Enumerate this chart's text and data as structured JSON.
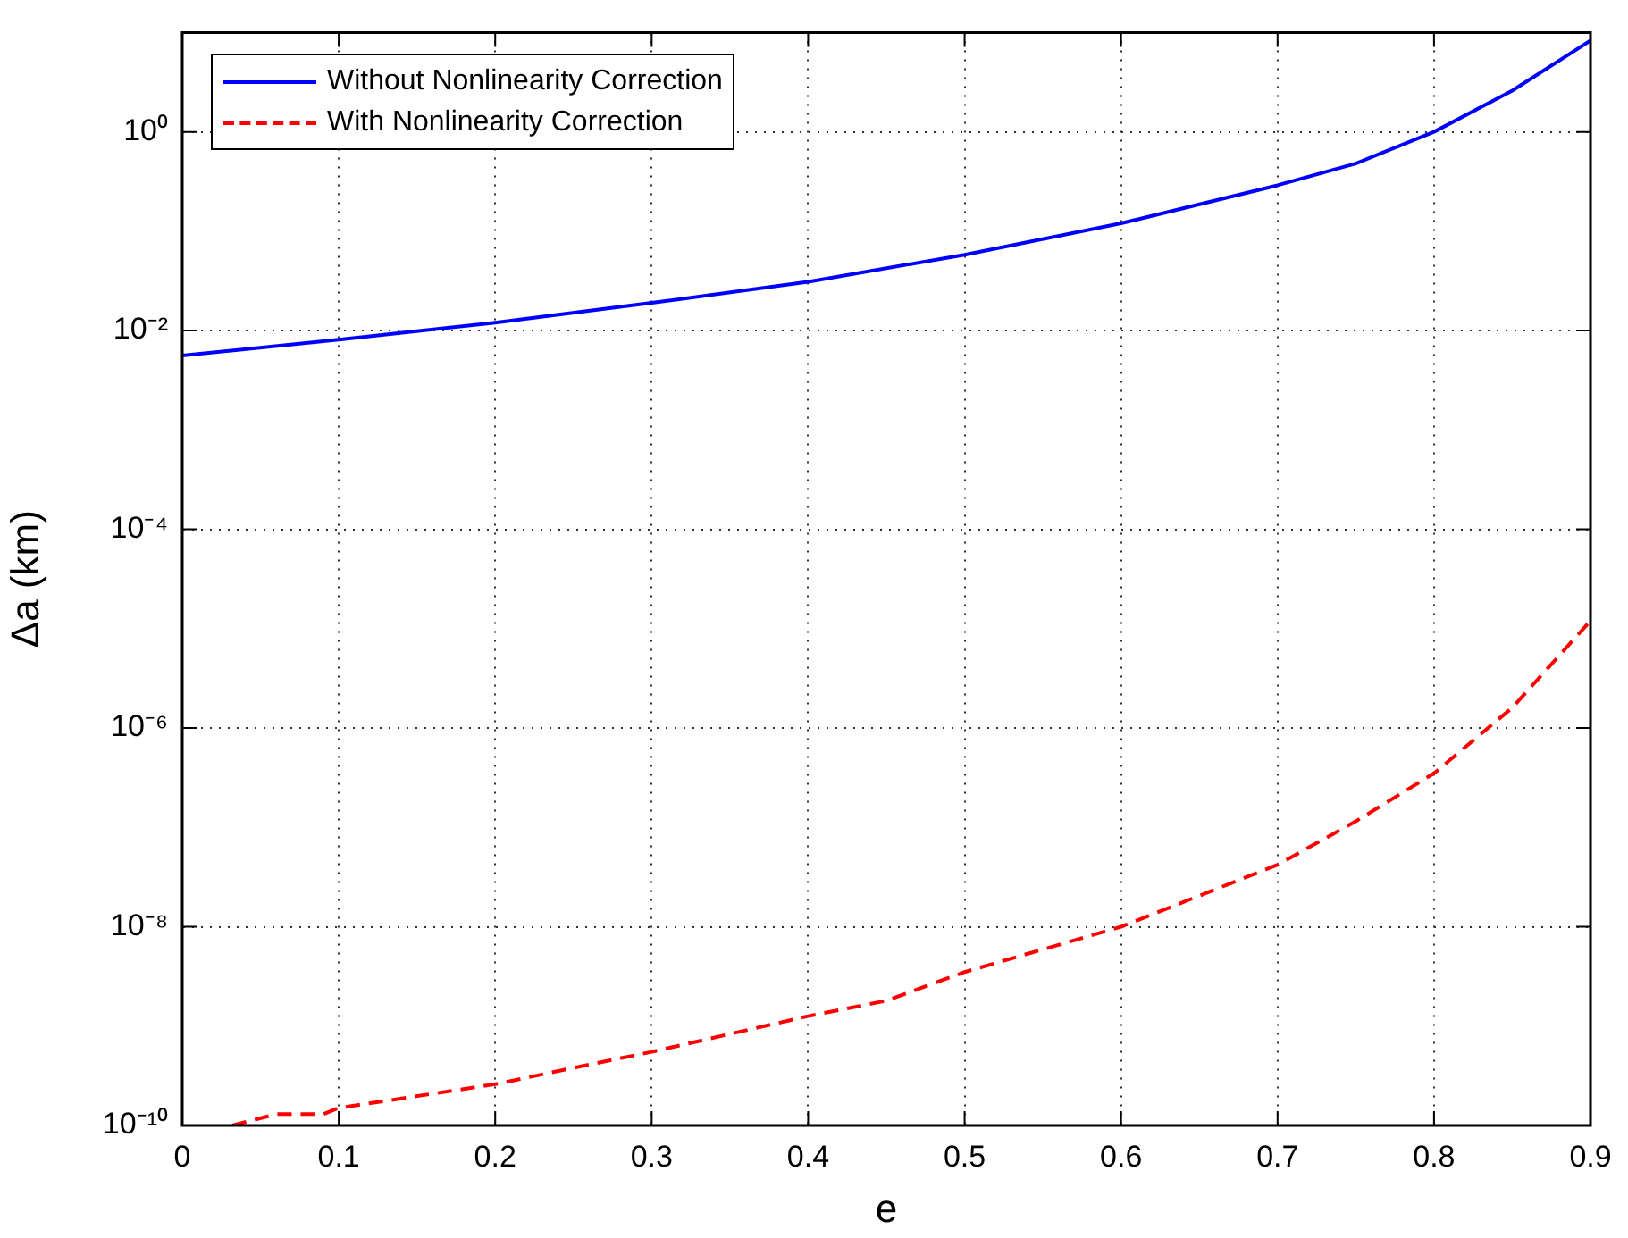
{
  "chart_data": {
    "type": "line",
    "xlabel": "e",
    "ylabel": "Δa (km)",
    "log": "y",
    "grid": true,
    "legend": "top left",
    "xlim": [
      0,
      0.9
    ],
    "xticks": [
      0,
      0.1,
      0.2,
      0.3,
      0.4,
      0.5,
      0.6,
      0.7,
      0.8,
      0.9
    ],
    "ylim": [
      1e-10,
      10
    ],
    "yticks": [
      {
        "value": 1e-10,
        "label": "10⁻¹⁰"
      },
      {
        "value": 1e-08,
        "label": "10⁻⁸"
      },
      {
        "value": 1e-06,
        "label": "10⁻⁶"
      },
      {
        "value": 0.0001,
        "label": "10⁻⁴"
      },
      {
        "value": 0.01,
        "label": "10⁻²"
      },
      {
        "value": 1,
        "label": "10⁰"
      }
    ],
    "series": [
      {
        "name": "Without Nonlinearity Correction",
        "color": "#0000ff",
        "line_style": "solid",
        "x": [
          0,
          0.1,
          0.2,
          0.3,
          0.4,
          0.5,
          0.6,
          0.7,
          0.75,
          0.8,
          0.85,
          0.9
        ],
        "values": [
          0.0056,
          0.0081,
          0.012,
          0.019,
          0.031,
          0.058,
          0.12,
          0.29,
          0.48,
          1,
          2.6,
          8.3
        ]
      },
      {
        "name": "With Nonlinearity Correction",
        "color": "#ff0000",
        "line_style": "dashed",
        "x": [
          0.032,
          0.06,
          0.09,
          0.1,
          0.2,
          0.25,
          0.3,
          0.4,
          0.45,
          0.5,
          0.6,
          0.7,
          0.75,
          0.8,
          0.85,
          0.9
        ],
        "values": [
          1e-10,
          1.3e-10,
          1.3e-10,
          1.5e-10,
          2.6e-10,
          3.8e-10,
          5.5e-10,
          1.26e-09,
          1.8e-09,
          3.5e-09,
          1e-08,
          4.2e-08,
          1.15e-07,
          3.5e-07,
          1.6e-06,
          1.2e-05
        ]
      }
    ]
  }
}
